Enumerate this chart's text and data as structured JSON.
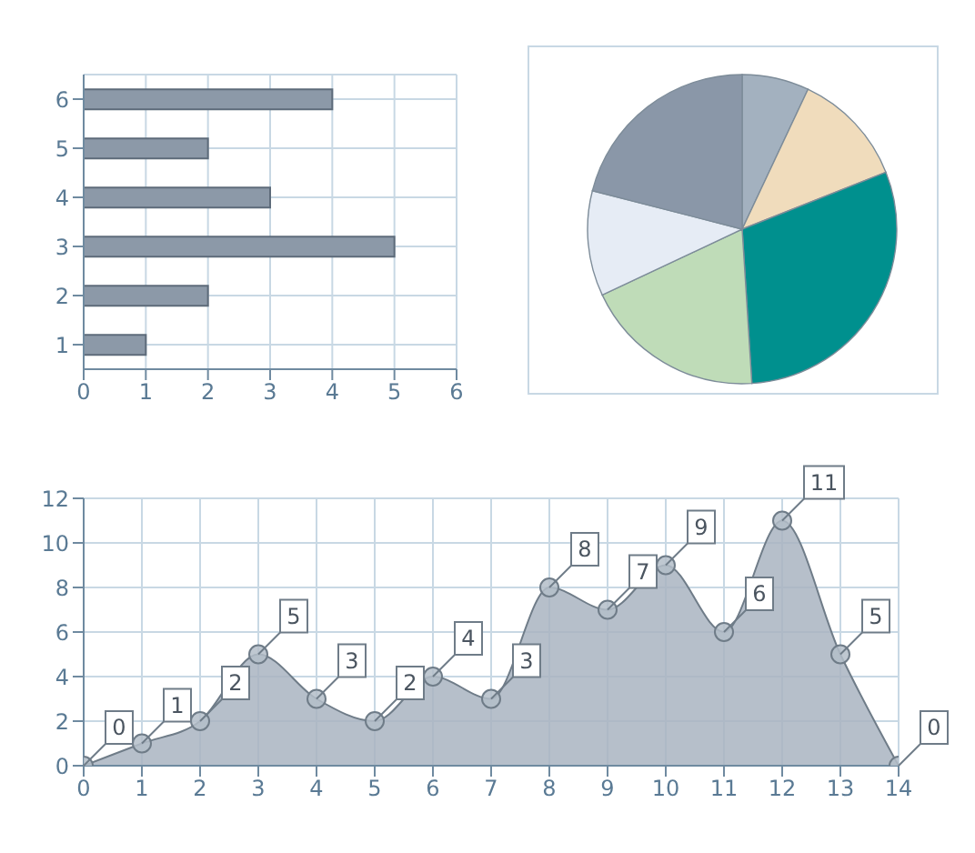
{
  "chart_data": [
    {
      "type": "bar",
      "orientation": "horizontal",
      "categories": [
        "6",
        "5",
        "4",
        "3",
        "2",
        "1"
      ],
      "values": [
        4,
        2,
        3,
        5,
        2,
        1
      ],
      "color": "#8c99a8",
      "xlim": [
        0,
        6
      ],
      "xticks": [
        0,
        1,
        2,
        3,
        4,
        5,
        6
      ],
      "grid": true
    },
    {
      "type": "pie",
      "categories": [
        null,
        null,
        null,
        null,
        null,
        null
      ],
      "values": [
        7,
        12,
        30,
        19,
        11,
        21
      ],
      "colors": [
        "#a3b1bf",
        "#f0dcbc",
        "#00908e",
        "#bfdcb8",
        "#e6ecf5",
        "#8a97a8"
      ]
    },
    {
      "type": "area",
      "x": [
        0,
        1,
        2,
        3,
        4,
        5,
        6,
        7,
        8,
        9,
        10,
        11,
        12,
        13,
        14
      ],
      "values": [
        0,
        1,
        2,
        5,
        3,
        2,
        4,
        3,
        8,
        7,
        9,
        6,
        11,
        5,
        0
      ],
      "color": "#a9b4c1",
      "xlim": [
        0,
        14
      ],
      "xticks": [
        0,
        1,
        2,
        3,
        4,
        5,
        6,
        7,
        8,
        9,
        10,
        11,
        12,
        13,
        14
      ],
      "ylim": [
        0,
        12
      ],
      "yticks": [
        0,
        2,
        4,
        6,
        8,
        10,
        12
      ],
      "grid": true,
      "marker": "circle",
      "data_labels": true
    }
  ]
}
